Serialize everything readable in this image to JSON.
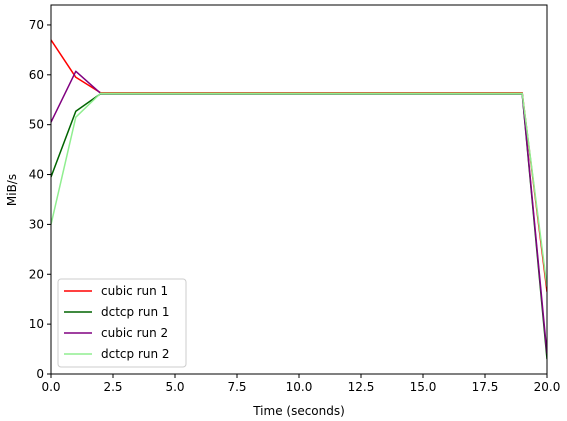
{
  "chart_data": {
    "type": "line",
    "xlabel": "Time (seconds)",
    "ylabel": "MiB/s",
    "xlim": [
      0,
      20
    ],
    "ylim": [
      0,
      74
    ],
    "xticks": [
      0.0,
      2.5,
      5.0,
      7.5,
      10.0,
      12.5,
      15.0,
      17.5,
      20.0
    ],
    "xtick_labels": [
      "0.0",
      "2.5",
      "5.0",
      "7.5",
      "10.0",
      "12.5",
      "15.0",
      "17.5",
      "20.0"
    ],
    "yticks": [
      0,
      10,
      20,
      30,
      40,
      50,
      60,
      70
    ],
    "ytick_labels": [
      "0",
      "10",
      "20",
      "30",
      "40",
      "50",
      "60",
      "70"
    ],
    "grid": false,
    "legend_position": "lower-left",
    "series": [
      {
        "name": "cubic run 1",
        "color": "#ff0000",
        "x": [
          0,
          1,
          2,
          3,
          4,
          5,
          6,
          7,
          8,
          9,
          10,
          11,
          12,
          13,
          14,
          15,
          16,
          17,
          18,
          19,
          20
        ],
        "y": [
          67.0,
          59.5,
          56.4,
          56.4,
          56.4,
          56.4,
          56.4,
          56.4,
          56.4,
          56.4,
          56.4,
          56.4,
          56.4,
          56.4,
          56.4,
          56.4,
          56.4,
          56.4,
          56.4,
          56.4,
          16.5
        ]
      },
      {
        "name": "dctcp run 1",
        "color": "#006400",
        "x": [
          0,
          1,
          2,
          3,
          4,
          5,
          6,
          7,
          8,
          9,
          10,
          11,
          12,
          13,
          14,
          15,
          16,
          17,
          18,
          19,
          20
        ],
        "y": [
          39.5,
          52.7,
          56.2,
          56.2,
          56.2,
          56.2,
          56.2,
          56.2,
          56.2,
          56.2,
          56.2,
          56.2,
          56.2,
          56.2,
          56.2,
          56.2,
          56.2,
          56.2,
          56.2,
          56.2,
          3.0
        ]
      },
      {
        "name": "cubic run 2",
        "color": "#800080",
        "x": [
          0,
          1,
          2,
          3,
          4,
          5,
          6,
          7,
          8,
          9,
          10,
          11,
          12,
          13,
          14,
          15,
          16,
          17,
          18,
          19,
          20
        ],
        "y": [
          50.5,
          60.7,
          56.3,
          56.3,
          56.3,
          56.3,
          56.3,
          56.3,
          56.3,
          56.3,
          56.3,
          56.3,
          56.3,
          56.3,
          56.3,
          56.3,
          56.3,
          56.3,
          56.3,
          56.3,
          4.0
        ]
      },
      {
        "name": "dctcp run 2",
        "color": "#90ee90",
        "x": [
          0,
          1,
          2,
          3,
          4,
          5,
          6,
          7,
          8,
          9,
          10,
          11,
          12,
          13,
          14,
          15,
          16,
          17,
          18,
          19,
          20
        ],
        "y": [
          30.0,
          51.5,
          56.3,
          56.3,
          56.3,
          56.3,
          56.3,
          56.3,
          56.3,
          56.3,
          56.3,
          56.3,
          56.3,
          56.3,
          56.3,
          56.3,
          56.3,
          56.3,
          56.3,
          56.3,
          17.5
        ]
      }
    ]
  }
}
